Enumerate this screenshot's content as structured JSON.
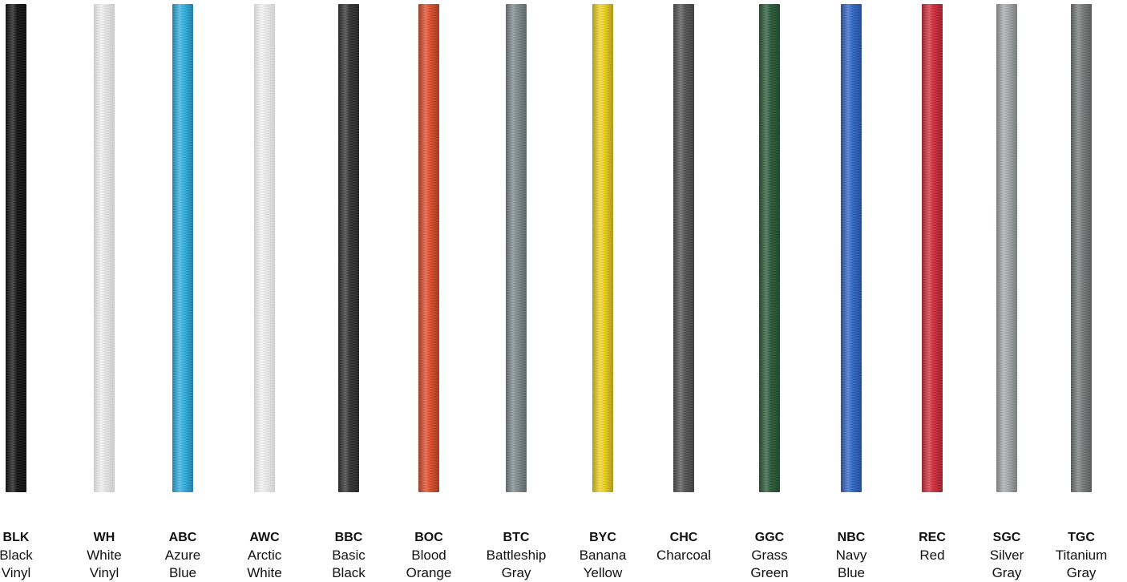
{
  "swatches": [
    {
      "code": "BLK",
      "name_lines": [
        "Black",
        "Vinyl"
      ],
      "color": "#141414",
      "shade": "dark"
    },
    {
      "code": "WH",
      "name_lines": [
        "White",
        "Vinyl"
      ],
      "color": "#e6e6e6",
      "shade": "light"
    },
    {
      "code": "ABC",
      "name_lines": [
        "Azure",
        "Blue"
      ],
      "color": "#2fb1e3",
      "shade": "mid"
    },
    {
      "code": "AWC",
      "name_lines": [
        "Arctic",
        "White"
      ],
      "color": "#ececec",
      "shade": "light"
    },
    {
      "code": "BBC",
      "name_lines": [
        "Basic",
        "Black"
      ],
      "color": "#333333",
      "shade": "dark"
    },
    {
      "code": "BOC",
      "name_lines": [
        "Blood",
        "Orange"
      ],
      "color": "#df4d2b",
      "shade": "mid"
    },
    {
      "code": "BTC",
      "name_lines": [
        "Battleship",
        "Gray"
      ],
      "color": "#7f8c8f",
      "shade": "mid"
    },
    {
      "code": "BYC",
      "name_lines": [
        "Banana",
        "Yellow"
      ],
      "color": "#f1d41f",
      "shade": "mid"
    },
    {
      "code": "CHC",
      "name_lines": [
        "Charcoal"
      ],
      "color": "#565656",
      "shade": "dark"
    },
    {
      "code": "GGC",
      "name_lines": [
        "Grass",
        "Green"
      ],
      "color": "#2b5d39",
      "shade": "dark"
    },
    {
      "code": "NBC",
      "name_lines": [
        "Navy",
        "Blue"
      ],
      "color": "#3167c9",
      "shade": "mid"
    },
    {
      "code": "REC",
      "name_lines": [
        "Red"
      ],
      "color": "#d52c3c",
      "shade": "mid"
    },
    {
      "code": "SGC",
      "name_lines": [
        "Silver",
        "Gray"
      ],
      "color": "#a8abad",
      "shade": "mid"
    },
    {
      "code": "TGC",
      "name_lines": [
        "Titanium",
        "Gray"
      ],
      "color": "#7a7d7d",
      "shade": "mid"
    }
  ]
}
